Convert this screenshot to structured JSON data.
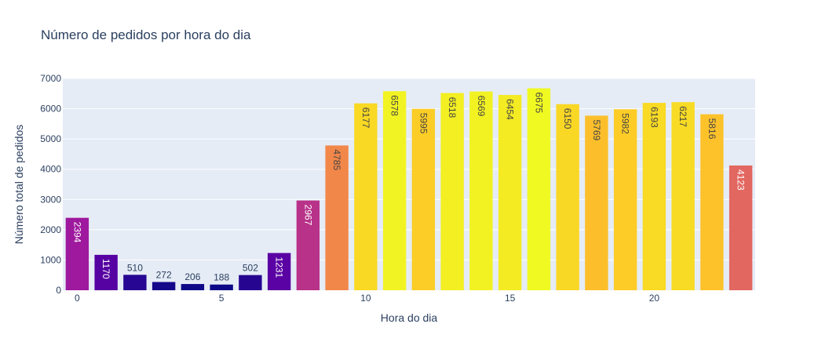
{
  "chart_data": {
    "type": "bar",
    "title": "Número de pedidos por hora do dia",
    "xlabel": "Hora do dia",
    "ylabel": "Número total de pedidos",
    "categories": [
      0,
      1,
      2,
      3,
      4,
      5,
      6,
      7,
      8,
      9,
      10,
      11,
      12,
      13,
      14,
      15,
      16,
      17,
      18,
      19,
      20,
      21,
      22,
      23
    ],
    "values": [
      2394,
      1170,
      510,
      272,
      206,
      188,
      502,
      1231,
      2967,
      4785,
      6177,
      6578,
      5995,
      6518,
      6569,
      6454,
      6675,
      6150,
      5769,
      5982,
      6193,
      6217,
      5816,
      4123
    ],
    "xlim": [
      -0.5,
      23.5
    ],
    "ylim": [
      0,
      7000
    ],
    "yticks": [
      0,
      1000,
      2000,
      3000,
      4000,
      5000,
      6000,
      7000
    ],
    "xticks": [
      0,
      5,
      10,
      15,
      20
    ],
    "grid": true,
    "colorscale": "plasma",
    "colors": {
      "plot_bg": "#e5ecf6",
      "grid": "#ffffff",
      "text": "#2a3f5f"
    }
  }
}
